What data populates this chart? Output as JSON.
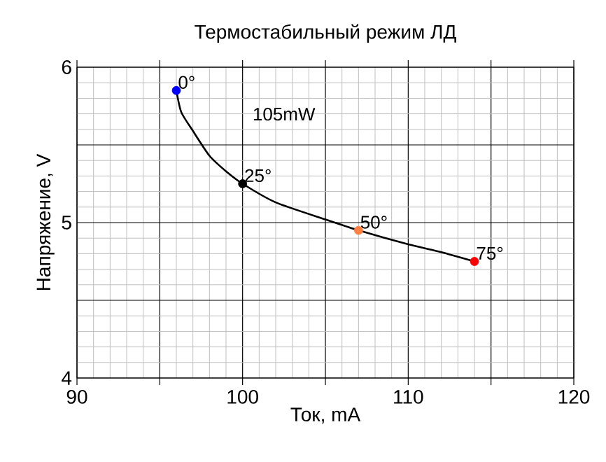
{
  "chart_data": {
    "type": "line",
    "title": "Термостабильный режим ЛД",
    "xlabel": "Ток, mA",
    "ylabel": "Напряжение, V",
    "xlim": [
      90,
      120
    ],
    "ylim": [
      4,
      6
    ],
    "xticks": [
      90,
      {
        "value": 95,
        "label": null
      },
      100,
      {
        "value": 105,
        "label": null
      },
      110,
      {
        "value": 115,
        "label": null
      },
      120
    ],
    "yticks": [
      4,
      {
        "value": 4.5,
        "label": null
      },
      5,
      {
        "value": 5.5,
        "label": null
      },
      6
    ],
    "grid": true,
    "series": [
      {
        "color": "#000000",
        "marker": "none",
        "x": [
          96,
          96.3,
          97,
          98,
          99,
          100,
          102,
          105,
          107,
          110,
          112,
          114
        ],
        "values": [
          5.85,
          5.71,
          5.59,
          5.43,
          5.33,
          5.25,
          5.13,
          5.02,
          4.95,
          4.86,
          4.81,
          4.75
        ]
      },
      {
        "type": "scatter",
        "marker": "circle",
        "x": [
          96,
          100,
          107,
          114
        ],
        "values": [
          5.85,
          5.25,
          4.95,
          4.75
        ],
        "colors": [
          "#0000ff",
          "#000000",
          "#ff8040",
          "#ff0000"
        ]
      }
    ],
    "annotations": [
      {
        "text": "0°",
        "x": 96,
        "y": 5.85
      },
      {
        "text": "25°",
        "x": 100,
        "y": 5.25
      },
      {
        "text": "50°",
        "x": 107,
        "y": 4.95
      },
      {
        "text": "75°",
        "x": 114,
        "y": 4.75
      },
      "105mW"
    ]
  }
}
